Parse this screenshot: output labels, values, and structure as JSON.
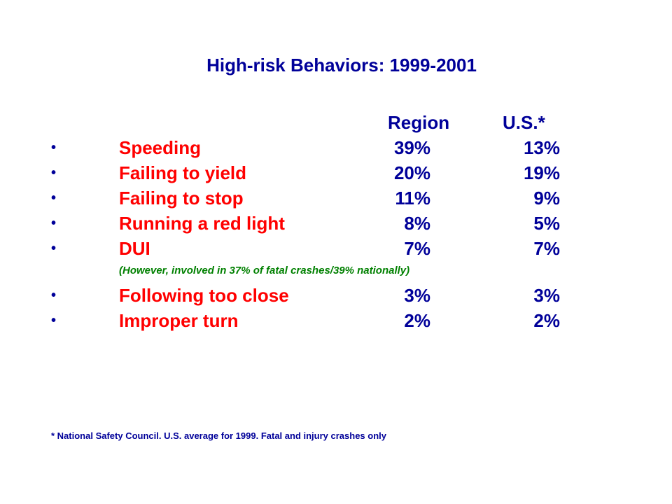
{
  "title": "High-risk Behaviors: 1999-2001",
  "table": {
    "headers": [
      "Region",
      "U.S.*"
    ],
    "rows": [
      {
        "bullet": "•",
        "behavior": "Speeding",
        "region": "39%",
        "us": "13%"
      },
      {
        "bullet": "•",
        "behavior": "Failing to yield",
        "region": "20%",
        "us": "19%"
      },
      {
        "bullet": "•",
        "behavior": "Failing to stop",
        "region": "11%",
        "us": "9%"
      },
      {
        "bullet": "•",
        "behavior": "Running a red light",
        "region": "8%",
        "us": "5%"
      },
      {
        "bullet": "•",
        "behavior": "DUI",
        "region": "7%",
        "us": "7%"
      },
      {
        "bullet": "•",
        "behavior": "Following too close",
        "region": "3%",
        "us": "3%"
      },
      {
        "bullet": "•",
        "behavior": "Improper turn",
        "region": "2%",
        "us": "2%"
      }
    ]
  },
  "dui_note": "(However, involved in 37% of fatal crashes/39% nationally)",
  "footnote": "* National Safety Council. U.S. average for 1999. Fatal and injury crashes only",
  "colors": {
    "heading": "#000099",
    "behavior": "#ff0000",
    "note": "#008000",
    "background": "#ffffff"
  }
}
